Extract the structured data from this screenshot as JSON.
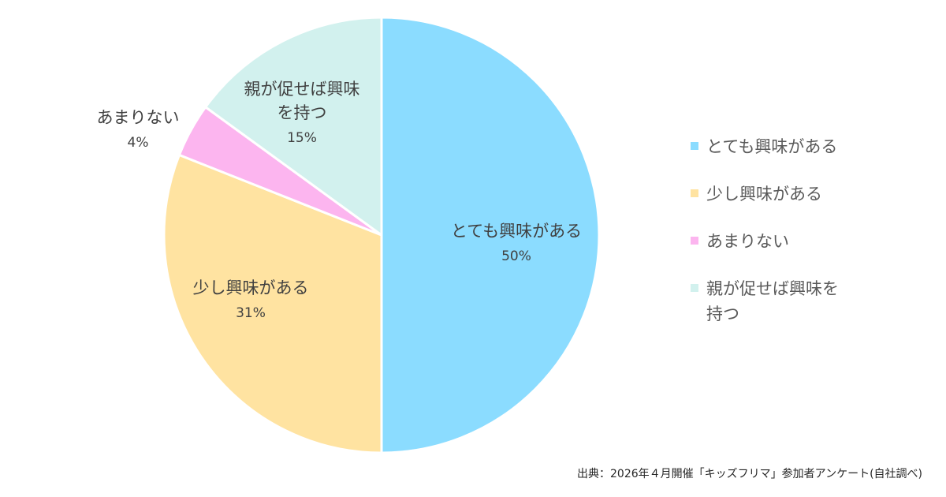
{
  "chart_data": {
    "type": "pie",
    "categories": [
      "とても興味がある",
      "少し興味がある",
      "あまりない",
      "親が促せば興味を持つ"
    ],
    "values": [
      50,
      31,
      4,
      15
    ],
    "unit": "%",
    "slice_labels": [
      {
        "lines": [
          "とても興味がある"
        ],
        "pct": "50%"
      },
      {
        "lines": [
          "少し興味がある"
        ],
        "pct": "31%"
      },
      {
        "lines": [
          "あまりない"
        ],
        "pct": "4%"
      },
      {
        "lines": [
          "親が促せば興味",
          "を持つ"
        ],
        "pct": "15%"
      }
    ],
    "legend": {
      "placement": "right",
      "entries": [
        {
          "lines": [
            "とても興味がある"
          ]
        },
        {
          "lines": [
            "少し興味がある"
          ]
        },
        {
          "lines": [
            "あまりない"
          ]
        },
        {
          "lines": [
            "親が促せば興味を",
            "持つ"
          ]
        }
      ]
    },
    "colors": [
      "#8bdcff",
      "#ffe3a1",
      "#fcb5ef",
      "#d2f1ee"
    ],
    "stroke_color": "#ffffff"
  },
  "source": "出典：2026年４月開催「キッズフリマ」参加者アンケート(自社調べ)"
}
